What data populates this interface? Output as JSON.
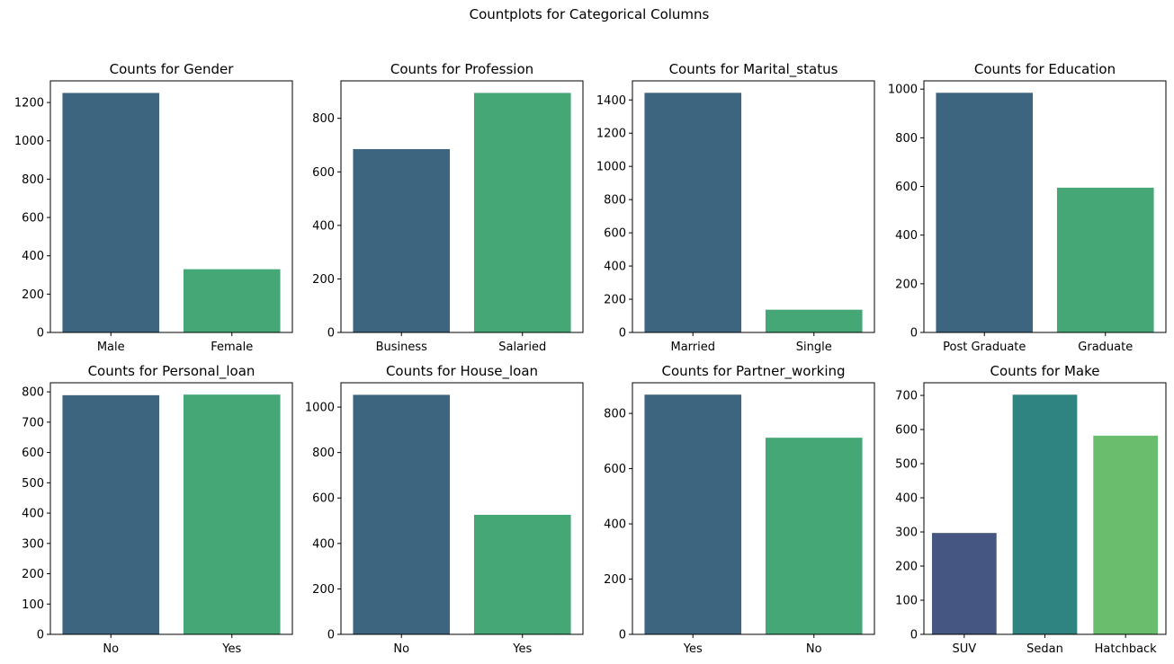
{
  "figure": {
    "title": "Countplots for Categorical Columns"
  },
  "chart_data": [
    {
      "type": "bar",
      "title": "Counts for Gender",
      "xlabel": "",
      "ylabel": "",
      "categories": [
        "Male",
        "Female"
      ],
      "values": [
        1250,
        330
      ],
      "colors": [
        "#3e657f",
        "#45a776"
      ],
      "ylim": [
        0,
        1313
      ],
      "yticks": [
        0,
        200,
        400,
        600,
        800,
        1000,
        1200
      ]
    },
    {
      "type": "bar",
      "title": "Counts for Profession",
      "xlabel": "",
      "ylabel": "",
      "categories": [
        "Business",
        "Salaried"
      ],
      "values": [
        685,
        895
      ],
      "colors": [
        "#3e657f",
        "#45a776"
      ],
      "ylim": [
        0,
        940
      ],
      "yticks": [
        0,
        200,
        400,
        600,
        800
      ]
    },
    {
      "type": "bar",
      "title": "Counts for Marital_status",
      "xlabel": "",
      "ylabel": "",
      "categories": [
        "Married",
        "Single"
      ],
      "values": [
        1443,
        137
      ],
      "colors": [
        "#3e657f",
        "#45a776"
      ],
      "ylim": [
        0,
        1515
      ],
      "yticks": [
        0,
        200,
        400,
        600,
        800,
        1000,
        1200,
        1400
      ]
    },
    {
      "type": "bar",
      "title": "Counts for Education",
      "xlabel": "",
      "ylabel": "",
      "categories": [
        "Post Graduate",
        "Graduate"
      ],
      "values": [
        985,
        595
      ],
      "colors": [
        "#3e657f",
        "#45a776"
      ],
      "ylim": [
        0,
        1034
      ],
      "yticks": [
        0,
        200,
        400,
        600,
        800,
        1000
      ]
    },
    {
      "type": "bar",
      "title": "Counts for Personal_loan",
      "xlabel": "",
      "ylabel": "",
      "categories": [
        "No",
        "Yes"
      ],
      "values": [
        789,
        791
      ],
      "colors": [
        "#3e657f",
        "#45a776"
      ],
      "ylim": [
        0,
        830
      ],
      "yticks": [
        0,
        100,
        200,
        300,
        400,
        500,
        600,
        700,
        800
      ]
    },
    {
      "type": "bar",
      "title": "Counts for House_loan",
      "xlabel": "",
      "ylabel": "",
      "categories": [
        "No",
        "Yes"
      ],
      "values": [
        1054,
        526
      ],
      "colors": [
        "#3e657f",
        "#45a776"
      ],
      "ylim": [
        0,
        1107
      ],
      "yticks": [
        0,
        200,
        400,
        600,
        800,
        1000
      ]
    },
    {
      "type": "bar",
      "title": "Counts for Partner_working",
      "xlabel": "",
      "ylabel": "",
      "categories": [
        "Yes",
        "No"
      ],
      "values": [
        868,
        712
      ],
      "colors": [
        "#3e657f",
        "#45a776"
      ],
      "ylim": [
        0,
        911
      ],
      "yticks": [
        0,
        200,
        400,
        600,
        800
      ]
    },
    {
      "type": "bar",
      "title": "Counts for Make",
      "xlabel": "",
      "ylabel": "",
      "categories": [
        "SUV",
        "Sedan",
        "Hatchback"
      ],
      "values": [
        297,
        702,
        582
      ],
      "colors": [
        "#465682",
        "#2f8380",
        "#69bd6c"
      ],
      "ylim": [
        0,
        737
      ],
      "yticks": [
        0,
        100,
        200,
        300,
        400,
        500,
        600,
        700
      ]
    }
  ]
}
